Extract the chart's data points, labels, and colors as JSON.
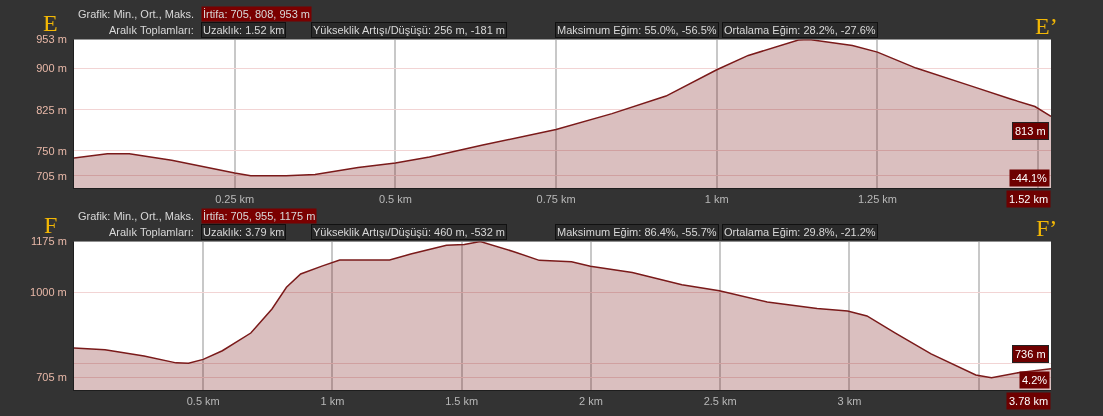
{
  "chart_data": [
    {
      "type": "area",
      "x": [
        0,
        0.052,
        0.086,
        0.152,
        0.25,
        0.275,
        0.33,
        0.375,
        0.442,
        0.5,
        0.553,
        0.636,
        0.75,
        0.837,
        0.921,
        1.0,
        1.049,
        1.127,
        1.144,
        1.211,
        1.25,
        1.31,
        1.394,
        1.456,
        1.495,
        1.52
      ],
      "series": [
        {
          "color": "#7a1a1a",
          "values": [
            737,
            745,
            745,
            733,
            710,
            705,
            705,
            707,
            720,
            728,
            739,
            761,
            789,
            818,
            850,
            898,
            924,
            952,
            953,
            942,
            930,
            901,
            869,
            845,
            831,
            813
          ]
        }
      ],
      "xlim": [
        0,
        1.52
      ],
      "ylim": [
        682,
        953
      ],
      "xticks": [
        {
          "value": 0.25,
          "label": "0.25 km"
        },
        {
          "value": 0.5,
          "label": "0.5 km"
        },
        {
          "value": 0.75,
          "label": "0.75 km"
        },
        {
          "value": 1,
          "label": "1 km"
        },
        {
          "value": 1.25,
          "label": "1.25 km"
        },
        {
          "value": 1.5,
          "label": null
        }
      ],
      "yticks": [
        {
          "value": 705,
          "label": "705 m"
        },
        {
          "value": 750,
          "label": "750 m"
        },
        {
          "value": 825,
          "label": "825 m"
        },
        {
          "value": 900,
          "label": "900 m"
        },
        {
          "value": 953,
          "label": "953 m"
        }
      ],
      "grid": true,
      "annotations": [
        "E",
        "E’",
        "Grafik: Min., Ort., Maks.",
        "İrtifa: 705, 808, 953 m",
        "Aralık Toplamları:",
        "Uzaklık: 1.52 km",
        "Yükseklik Artışı/Düşüşü: 256 m, -181 m",
        "Maksimum Eğim: 55.0%, -56.5%",
        "Ortalama Eğim: 28.2%, -27.6%",
        "-44.1%",
        "1.52 km",
        {
          "text": "813 m",
          "x": 1.52,
          "y": 813
        }
      ]
    },
    {
      "type": "area",
      "x": [
        0,
        0.12,
        0.271,
        0.395,
        0.443,
        0.5,
        0.574,
        0.684,
        0.766,
        0.822,
        0.877,
        0.959,
        1.028,
        1.097,
        1.221,
        1.303,
        1.441,
        1.51,
        1.572,
        1.702,
        1.8,
        1.925,
        1.998,
        2.16,
        2.352,
        2.497,
        2.682,
        2.875,
        2.993,
        3.068,
        3.178,
        3.316,
        3.489,
        3.55,
        3.659,
        3.78
      ],
      "series": [
        {
          "color": "#7a1a1a",
          "values": [
            807,
            801,
            780,
            756,
            755,
            768,
            798,
            859,
            942,
            1017,
            1063,
            1090,
            1111,
            1111,
            1111,
            1132,
            1162,
            1165,
            1175,
            1140,
            1110,
            1105,
            1090,
            1068,
            1026,
            1005,
            966,
            944,
            935,
            918,
            859,
            787,
            714,
            705,
            723,
            736
          ]
        }
      ],
      "xlim": [
        0,
        3.78
      ],
      "ylim": [
        661,
        1175
      ],
      "xticks": [
        {
          "value": 0.5,
          "label": "0.5 km"
        },
        {
          "value": 1,
          "label": "1 km"
        },
        {
          "value": 1.5,
          "label": "1.5 km"
        },
        {
          "value": 2,
          "label": "2 km"
        },
        {
          "value": 2.5,
          "label": "2.5 km"
        },
        {
          "value": 3,
          "label": "3 km"
        },
        {
          "value": 3.5,
          "label": null
        }
      ],
      "yticks": [
        {
          "value": 705,
          "label": "705 m"
        },
        {
          "value": 754,
          "label": null
        },
        {
          "value": 1000,
          "label": "1000 m"
        },
        {
          "value": 1175,
          "label": "1175 m"
        }
      ],
      "grid": true,
      "annotations": [
        "F",
        "F’",
        "Grafik: Min., Ort., Maks.",
        "İrtifa: 705, 955, 1175 m",
        "Aralık Toplamları:",
        "Uzaklık: 3.79 km",
        "Yükseklik Artışı/Düşüşü: 460 m, -532 m",
        "Maksimum Eğim: 86.4%, -55.7%",
        "Ortalama Eğim: 29.8%, -21.2%",
        "4.2%",
        "3.78 km",
        {
          "text": "736 m",
          "x": 3.78,
          "y": 736
        }
      ]
    }
  ]
}
